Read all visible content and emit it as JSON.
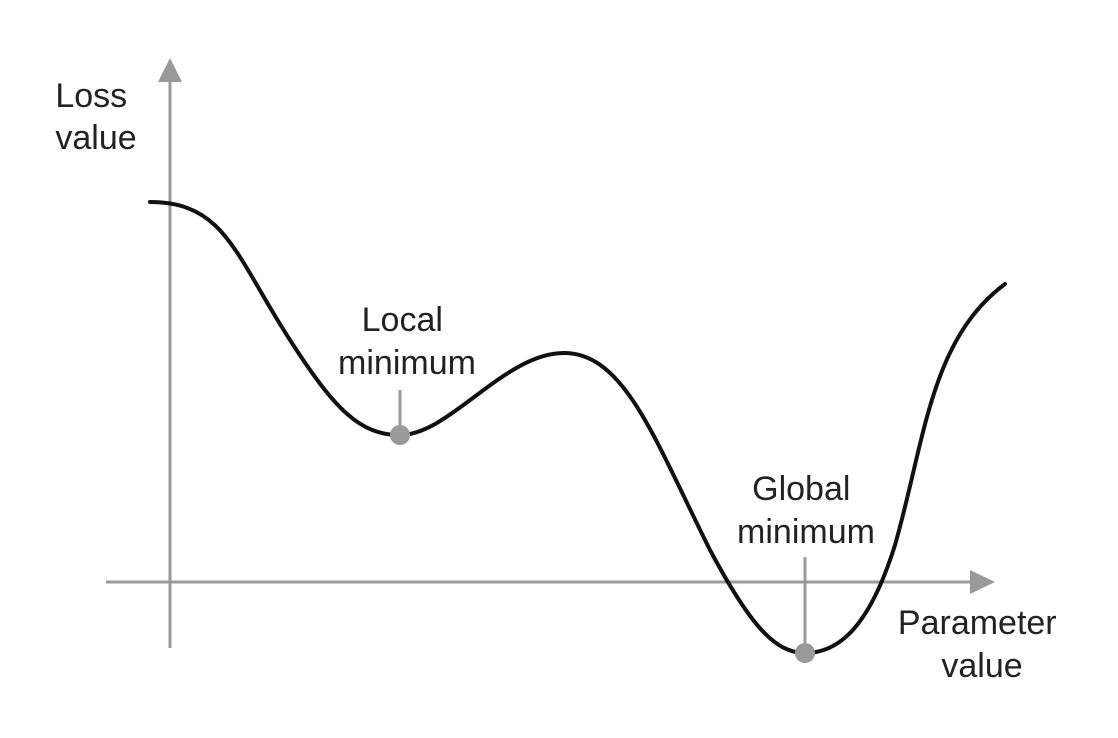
{
  "figure": {
    "y_axis_label": [
      "Loss",
      "value"
    ],
    "x_axis_label": [
      "Parameter",
      "value"
    ],
    "local_minimum_label": [
      "Local",
      "minimum"
    ],
    "global_minimum_label": [
      "Global",
      "minimum"
    ]
  },
  "colors": {
    "axis": "#999999",
    "curve": "#111111",
    "marker": "#999999",
    "text": "#222222"
  }
}
